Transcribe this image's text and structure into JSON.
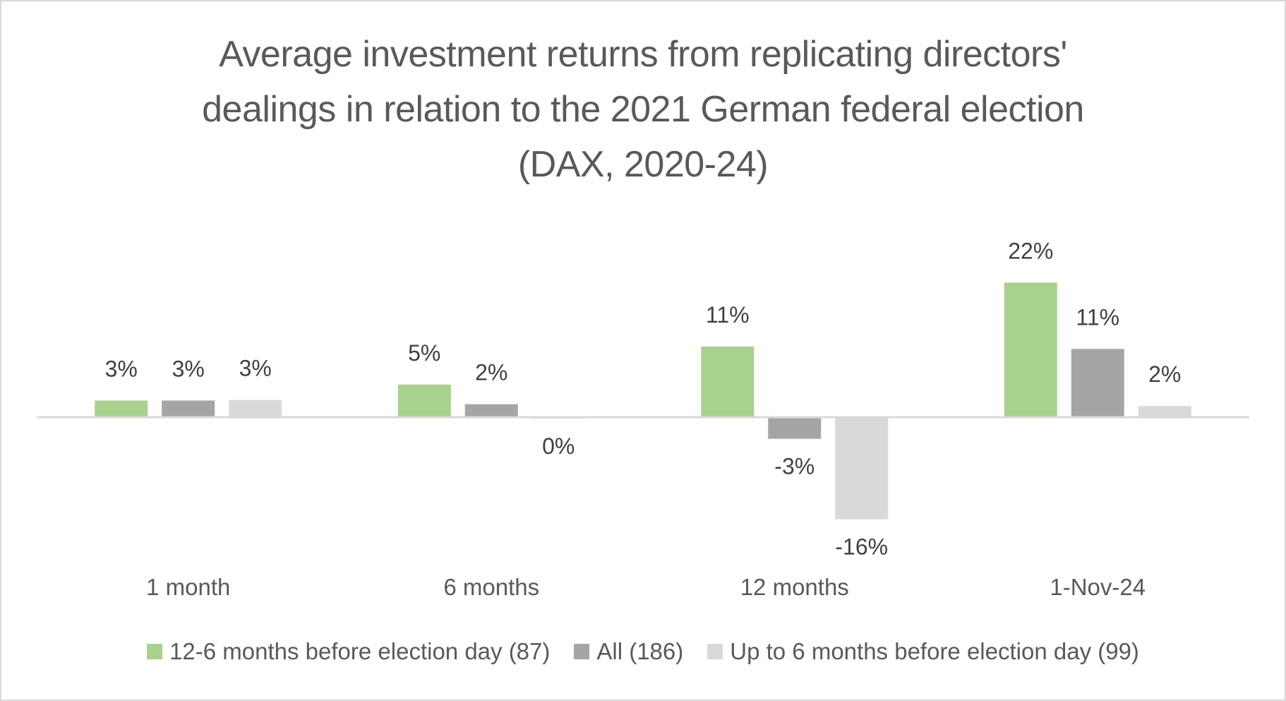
{
  "chart_data": {
    "type": "bar",
    "title_lines": [
      "Average investment returns from replicating directors'",
      "dealings in relation to the 2021 German federal election",
      "(DAX, 2020-24)"
    ],
    "title": "Average investment returns from replicating directors' dealings in relation to the 2021 German federal election (DAX, 2020-24)",
    "xlabel": "",
    "ylabel": "",
    "categories": [
      "1 month",
      "6 months",
      "12 months",
      "1-Nov-24"
    ],
    "series": [
      {
        "name": "12-6 months before election day (87)",
        "color": "#a9d18e",
        "values": [
          2.6,
          5.2,
          11.4,
          21.8
        ],
        "labels": [
          "3%",
          "5%",
          "11%",
          "22%"
        ]
      },
      {
        "name": "All (186)",
        "color": "#a5a5a5",
        "values": [
          2.6,
          2.0,
          -3.4,
          11.0
        ],
        "labels": [
          "3%",
          "2%",
          "-3%",
          "11%"
        ]
      },
      {
        "name": "Up to 6 months before election day (99)",
        "color": "#d9d9d9",
        "values": [
          2.7,
          -0.1,
          -16.5,
          1.7
        ],
        "labels": [
          "3%",
          "0%",
          "-16%",
          "2%"
        ]
      }
    ],
    "ylim": [
      -18,
      24
    ],
    "grid": false,
    "y_axis_visible": false,
    "legend_position": "bottom",
    "units": "%"
  }
}
